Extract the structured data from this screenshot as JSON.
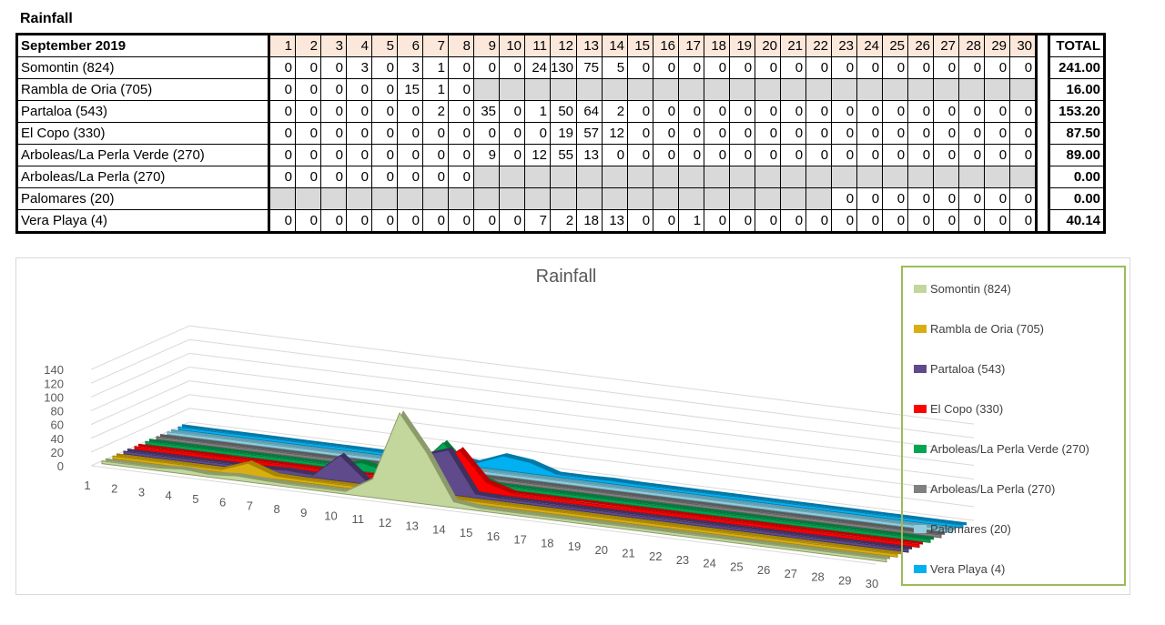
{
  "heading": "Rainfall",
  "table": {
    "header_label": "September 2019",
    "days": [
      "1",
      "2",
      "3",
      "4",
      "5",
      "6",
      "7",
      "8",
      "9",
      "10",
      "11",
      "12",
      "13",
      "14",
      "15",
      "16",
      "17",
      "18",
      "19",
      "20",
      "21",
      "22",
      "23",
      "24",
      "25",
      "26",
      "27",
      "28",
      "29",
      "30"
    ],
    "total_label": "TOTAL",
    "rows": [
      {
        "name": "Somontin (824)",
        "values": [
          "0",
          "0",
          "0",
          "3",
          "0",
          "3",
          "1",
          "0",
          "0",
          "0",
          "24",
          "130",
          "75",
          "5",
          "0",
          "0",
          "0",
          "0",
          "0",
          "0",
          "0",
          "0",
          "0",
          "0",
          "0",
          "0",
          "0",
          "0",
          "0",
          "0"
        ],
        "total": "241.00"
      },
      {
        "name": "Rambla de Oria (705)",
        "values": [
          "0",
          "0",
          "0",
          "0",
          "0",
          "15",
          "1",
          "0",
          "",
          "",
          "",
          "",
          "",
          "",
          "",
          "",
          "",
          "",
          "",
          "",
          "",
          "",
          "",
          "",
          "",
          "",
          "",
          "",
          "",
          ""
        ],
        "total": "16.00"
      },
      {
        "name": "Partaloa (543)",
        "values": [
          "0",
          "0",
          "0",
          "0",
          "0",
          "0",
          "2",
          "0",
          "35",
          "0",
          "1",
          "50",
          "64",
          "2",
          "0",
          "0",
          "0",
          "0",
          "0",
          "0",
          "0",
          "0",
          "0",
          "0",
          "0",
          "0",
          "0",
          "0",
          "0",
          "0"
        ],
        "total": "153.20"
      },
      {
        "name": "El Copo (330)",
        "values": [
          "0",
          "0",
          "0",
          "0",
          "0",
          "0",
          "0",
          "0",
          "0",
          "0",
          "0",
          "19",
          "57",
          "12",
          "0",
          "0",
          "0",
          "0",
          "0",
          "0",
          "0",
          "0",
          "0",
          "0",
          "0",
          "0",
          "0",
          "0",
          "0",
          "0"
        ],
        "total": "87.50"
      },
      {
        "name": "Arboleas/La Perla Verde (270)",
        "values": [
          "0",
          "0",
          "0",
          "0",
          "0",
          "0",
          "0",
          "0",
          "9",
          "0",
          "12",
          "55",
          "13",
          "0",
          "0",
          "0",
          "0",
          "0",
          "0",
          "0",
          "0",
          "0",
          "0",
          "0",
          "0",
          "0",
          "0",
          "0",
          "0",
          "0"
        ],
        "total": "89.00"
      },
      {
        "name": "Arboleas/La Perla (270)",
        "values": [
          "0",
          "0",
          "0",
          "0",
          "0",
          "0",
          "0",
          "0",
          "",
          "",
          "",
          "",
          "",
          "",
          "",
          "",
          "",
          "",
          "",
          "",
          "",
          "",
          "",
          "",
          "",
          "",
          "",
          "",
          "",
          ""
        ],
        "total": "0.00"
      },
      {
        "name": "Palomares (20)",
        "values": [
          "",
          "",
          "",
          "",
          "",
          "",
          "",
          "",
          "",
          "",
          "",
          "",
          "",
          "",
          "",
          "",
          "",
          "",
          "",
          "",
          "",
          "",
          "0",
          "0",
          "0",
          "0",
          "0",
          "0",
          "0",
          "0"
        ],
        "total": "0.00"
      },
      {
        "name": "Vera Playa (4)",
        "values": [
          "0",
          "0",
          "0",
          "0",
          "0",
          "0",
          "0",
          "0",
          "0",
          "0",
          "7",
          "2",
          "18",
          "13",
          "0",
          "0",
          "1",
          "0",
          "0",
          "0",
          "0",
          "0",
          "0",
          "0",
          "0",
          "0",
          "0",
          "0",
          "0",
          "0"
        ],
        "total": "40.14"
      }
    ]
  },
  "chart_data": {
    "type": "area",
    "title": "Rainfall",
    "categories": [
      "1",
      "2",
      "3",
      "4",
      "5",
      "6",
      "7",
      "8",
      "9",
      "10",
      "11",
      "12",
      "13",
      "14",
      "15",
      "16",
      "17",
      "18",
      "19",
      "20",
      "21",
      "22",
      "23",
      "24",
      "25",
      "26",
      "27",
      "28",
      "29",
      "30"
    ],
    "y_ticks": [
      "0",
      "20",
      "40",
      "60",
      "80",
      "100",
      "120",
      "140"
    ],
    "ylim": [
      0,
      140
    ],
    "legend_position": "right",
    "series": [
      {
        "name": "Somontin (824)",
        "color": "#c3d69b",
        "edge": "#8c9b6a",
        "values": [
          0,
          0,
          0,
          3,
          0,
          3,
          1,
          0,
          0,
          0,
          24,
          130,
          75,
          5,
          0,
          0,
          0,
          0,
          0,
          0,
          0,
          0,
          0,
          0,
          0,
          0,
          0,
          0,
          0,
          0
        ]
      },
      {
        "name": "Rambla de Oria (705)",
        "color": "#d9ae10",
        "edge": "#a88400",
        "values": [
          0,
          0,
          0,
          0,
          0,
          15,
          1,
          0,
          0,
          0,
          0,
          0,
          0,
          0,
          0,
          0,
          0,
          0,
          0,
          0,
          0,
          0,
          0,
          0,
          0,
          0,
          0,
          0,
          0,
          0
        ]
      },
      {
        "name": "Partaloa (543)",
        "color": "#5f4b8b",
        "edge": "#3f3060",
        "values": [
          0,
          0,
          0,
          0,
          0,
          0,
          2,
          0,
          35,
          0,
          1,
          50,
          64,
          2,
          0,
          0,
          0,
          0,
          0,
          0,
          0,
          0,
          0,
          0,
          0,
          0,
          0,
          0,
          0,
          0
        ]
      },
      {
        "name": "El Copo (330)",
        "color": "#ff0000",
        "edge": "#c00000",
        "values": [
          0,
          0,
          0,
          0,
          0,
          0,
          0,
          0,
          0,
          0,
          0,
          19,
          57,
          12,
          0,
          0,
          0,
          0,
          0,
          0,
          0,
          0,
          0,
          0,
          0,
          0,
          0,
          0,
          0,
          0
        ]
      },
      {
        "name": "Arboleas/La Perla Verde (270)",
        "color": "#00a651",
        "edge": "#007a3b",
        "values": [
          0,
          0,
          0,
          0,
          0,
          0,
          0,
          0,
          9,
          0,
          12,
          55,
          13,
          0,
          0,
          0,
          0,
          0,
          0,
          0,
          0,
          0,
          0,
          0,
          0,
          0,
          0,
          0,
          0,
          0
        ]
      },
      {
        "name": "Arboleas/La Perla (270)",
        "color": "#808080",
        "edge": "#5a5a5a",
        "values": [
          0,
          0,
          0,
          0,
          0,
          0,
          0,
          0,
          0,
          0,
          0,
          0,
          0,
          0,
          0,
          0,
          0,
          0,
          0,
          0,
          0,
          0,
          0,
          0,
          0,
          0,
          0,
          0,
          0,
          0
        ]
      },
      {
        "name": "Palomares (20)",
        "color": "#93cddd",
        "edge": "#5e9fb1",
        "values": [
          0,
          0,
          0,
          0,
          0,
          0,
          0,
          0,
          0,
          0,
          0,
          0,
          0,
          0,
          0,
          0,
          0,
          0,
          0,
          0,
          0,
          0,
          0,
          0,
          0,
          0,
          0,
          0,
          0,
          0
        ]
      },
      {
        "name": "Vera Playa (4)",
        "color": "#00b0f0",
        "edge": "#0078a8",
        "values": [
          0,
          0,
          0,
          0,
          0,
          0,
          0,
          0,
          0,
          0,
          7,
          2,
          18,
          13,
          0,
          0,
          1,
          0,
          0,
          0,
          0,
          0,
          0,
          0,
          0,
          0,
          0,
          0,
          0,
          0
        ]
      }
    ]
  }
}
